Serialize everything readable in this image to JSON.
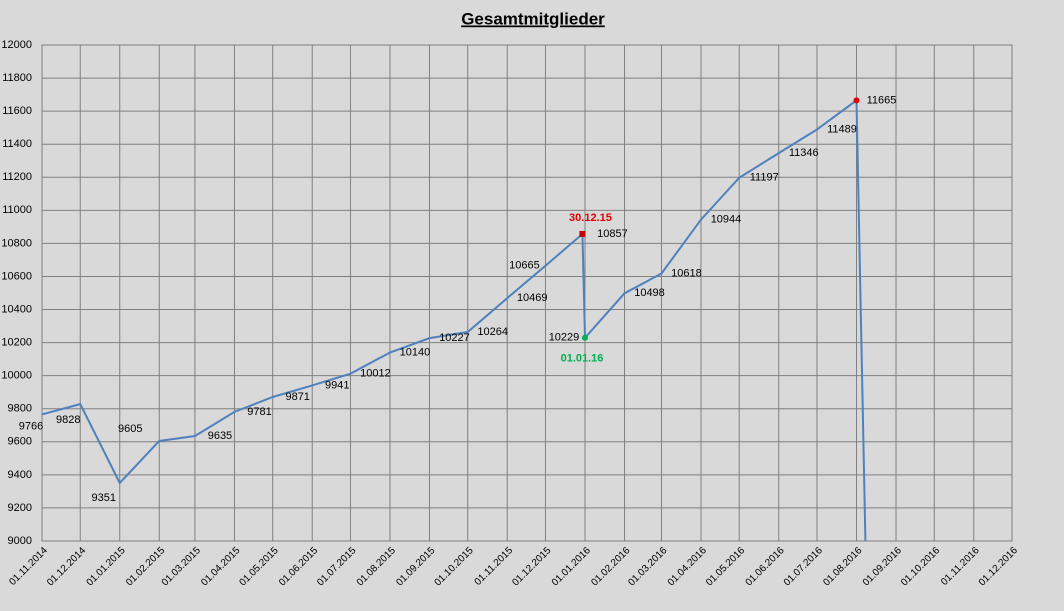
{
  "chart_data": {
    "type": "line",
    "title": "Gesamtmitglieder",
    "x": [
      "01.11.2014",
      "01.12.2014",
      "01.01.2015",
      "01.02.2015",
      "01.03.2015",
      "01.04.2015",
      "01.05.2015",
      "01.06.2015",
      "01.07.2015",
      "01.08.2015",
      "01.09.2015",
      "01.10.2015",
      "01.11.2015",
      "01.12.2015",
      "30.12.2015",
      "01.01.2016",
      "01.02.2016",
      "01.03.2016",
      "01.04.2016",
      "01.05.2016",
      "01.06.2016",
      "01.07.2016",
      "01.08.2016",
      "08.08.2016"
    ],
    "series": [
      {
        "color": "#4f81bd",
        "values": [
          9766,
          9828,
          9351,
          9605,
          9635,
          9781,
          9871,
          9941,
          10012,
          10140,
          10227,
          10264,
          10469,
          10665,
          10857,
          10229,
          10498,
          10618,
          10944,
          11197,
          11346,
          11489,
          11665,
          9000
        ]
      }
    ],
    "value_labels": [
      "9766",
      "9828",
      "9351",
      "9605",
      "9635",
      "9781",
      "9871",
      "9941",
      "10012",
      "10140",
      "10227",
      "10264",
      "10469",
      "10665",
      "10857",
      "10229",
      "10498",
      "10618",
      "10944",
      "11197",
      "11346",
      "11489",
      "11665",
      null
    ],
    "xlim": [
      "01.11.2014",
      "01.12.2016"
    ],
    "xticks": [
      "01.11.2014",
      "01.12.2014",
      "01.01.2015",
      "01.02.2015",
      "01.03.2015",
      "01.04.2015",
      "01.05.2015",
      "01.06.2015",
      "01.07.2015",
      "01.08.2015",
      "01.09.2015",
      "01.10.2015",
      "01.11.2015",
      "01.12.2015",
      "01.01.2016",
      "01.02.2016",
      "01.03.2016",
      "01.04.2016",
      "01.05.2016",
      "01.06.2016",
      "01.07.2016",
      "01.08.2016",
      "01.09.2016",
      "01.10.2016",
      "01.11.2016",
      "01.12.2016"
    ],
    "ylim": [
      9000,
      12000
    ],
    "yticks": [
      9000,
      9200,
      9400,
      9600,
      9800,
      10000,
      10200,
      10400,
      10600,
      10800,
      11000,
      11200,
      11400,
      11600,
      11800,
      12000
    ],
    "grid": true,
    "markers": [
      {
        "x": "30.12.2015",
        "y": 10857,
        "color": "#c00000",
        "shape": "square"
      },
      {
        "x": "01.01.2016",
        "y": 10229,
        "color": "#00b050",
        "shape": "circle"
      },
      {
        "x": "01.08.2016",
        "y": 11665,
        "color": "#e00000",
        "shape": "circle"
      }
    ],
    "annotations": [
      {
        "text": "30.12.15",
        "x": "30.12.2015",
        "y": 10857,
        "color": "#e00000"
      },
      {
        "text": "01.01.16",
        "x": "01.01.2016",
        "y": 10229,
        "color": "#00b050"
      }
    ]
  }
}
